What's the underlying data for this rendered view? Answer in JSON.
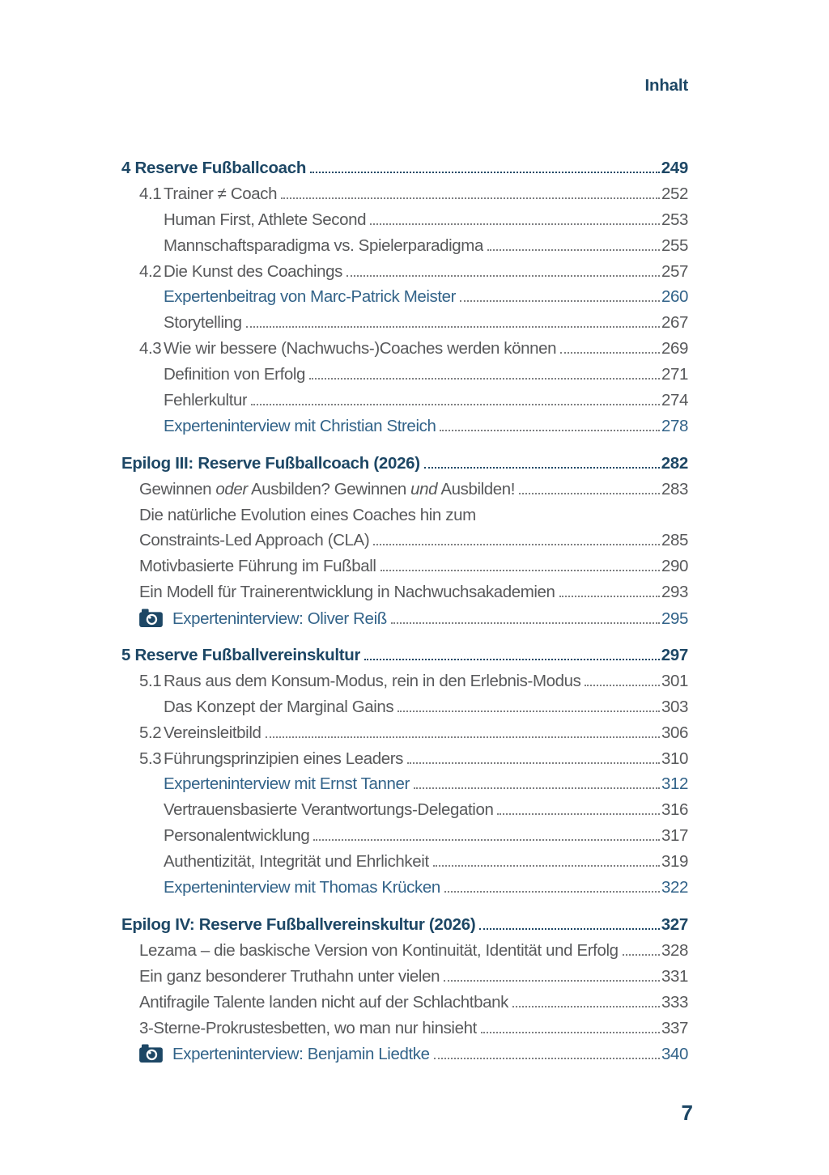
{
  "header": {
    "title": "Inhalt"
  },
  "footer": {
    "page_number": "7"
  },
  "colors": {
    "heading_navy": "#1d4765",
    "body_gray": "#58595b",
    "link_blue": "#326389",
    "leader_dot_gray": "#7d7e80",
    "paper": "#ffffff"
  },
  "icons": {
    "expert_interview_marker": "camera-icon"
  },
  "toc": [
    {
      "heading": {
        "text": "4 Reserve Fußballcoach",
        "page": "249"
      },
      "entries": [
        {
          "num": "4.1",
          "text": "Trainer ≠ Coach",
          "page": "252"
        },
        {
          "indent": 2,
          "text": "Human First, Athlete Second",
          "page": "253"
        },
        {
          "indent": 2,
          "text": "Mannschaftsparadigma vs. Spielerparadigma",
          "page": "255"
        },
        {
          "num": "4.2",
          "text": "Die Kunst des Coachings",
          "page": "257"
        },
        {
          "indent": 2,
          "link": true,
          "text": "Expertenbeitrag von Marc-Patrick Meister",
          "page": "260"
        },
        {
          "indent": 2,
          "text": "Storytelling",
          "page": "267"
        },
        {
          "num": "4.3",
          "text": "Wie wir bessere (Nachwuchs-)Coaches werden können",
          "page": "269"
        },
        {
          "indent": 2,
          "text": "Definition von Erfolg",
          "page": "271"
        },
        {
          "indent": 2,
          "text": "Fehlerkultur",
          "page": "274"
        },
        {
          "indent": 2,
          "link": true,
          "text": "Experteninterview mit Christian Streich",
          "page": "278"
        }
      ]
    },
    {
      "heading": {
        "text": "Epilog III: Reserve Fußballcoach (2026)",
        "page": "282"
      },
      "entries": [
        {
          "indent": 1,
          "parts": [
            {
              "text": "Gewinnen "
            },
            {
              "text": "oder",
              "italic": true
            },
            {
              "text": " Ausbilden? Gewinnen "
            },
            {
              "text": "und",
              "italic": true
            },
            {
              "text": " Ausbilden!"
            }
          ],
          "page": "283"
        },
        {
          "indent": 1,
          "text": "Die natürliche Evolution eines Coaches hin zum"
        },
        {
          "indent": 1,
          "text": "Constraints-Led Approach (CLA)",
          "page": "285"
        },
        {
          "indent": 1,
          "text": "Motivbasierte Führung im Fußball",
          "page": "290"
        },
        {
          "indent": 1,
          "text": "Ein Modell für Trainerentwicklung in Nachwuchsakademien",
          "page": "293"
        },
        {
          "indent": 1,
          "icon": "camera",
          "link": true,
          "text": "Experteninterview: Oliver Reiß",
          "page": "295"
        }
      ]
    },
    {
      "heading": {
        "text": "5 Reserve Fußballvereinskultur",
        "page": "297"
      },
      "entries": [
        {
          "num": "5.1",
          "text": "Raus aus dem Konsum-Modus, rein in den Erlebnis-Modus",
          "page": "301"
        },
        {
          "indent": 2,
          "text": "Das Konzept der Marginal Gains",
          "page": "303"
        },
        {
          "num": "5.2",
          "text": "Vereinsleitbild",
          "page": "306"
        },
        {
          "num": "5.3",
          "text": "Führungsprinzipien eines Leaders",
          "page": "310"
        },
        {
          "indent": 2,
          "link": true,
          "text": "Experteninterview mit Ernst Tanner",
          "page": "312"
        },
        {
          "indent": 2,
          "text": "Vertrauensbasierte Verantwortungs-Delegation",
          "page": "316"
        },
        {
          "indent": 2,
          "text": "Personalentwicklung",
          "page": "317"
        },
        {
          "indent": 2,
          "text": "Authentizität, Integrität und Ehrlichkeit",
          "page": "319"
        },
        {
          "indent": 2,
          "link": true,
          "text": "Experteninterview mit Thomas Krücken",
          "page": "322"
        }
      ]
    },
    {
      "heading": {
        "text": "Epilog IV: Reserve Fußballvereinskultur (2026)",
        "page": "327"
      },
      "entries": [
        {
          "indent": 1,
          "text": "Lezama – die baskische Version von Kontinuität, Identität und Erfolg",
          "page": "328"
        },
        {
          "indent": 1,
          "text": "Ein ganz besonderer Truthahn unter vielen",
          "page": "331"
        },
        {
          "indent": 1,
          "text": "Antifragile Talente landen nicht auf der Schlachtbank",
          "page": "333"
        },
        {
          "indent": 1,
          "text": "3-Sterne-Prokrustesbetten, wo man nur hinsieht",
          "page": "337"
        },
        {
          "indent": 1,
          "icon": "camera",
          "link": true,
          "text": "Experteninterview: Benjamin Liedtke",
          "page": "340"
        }
      ]
    }
  ]
}
